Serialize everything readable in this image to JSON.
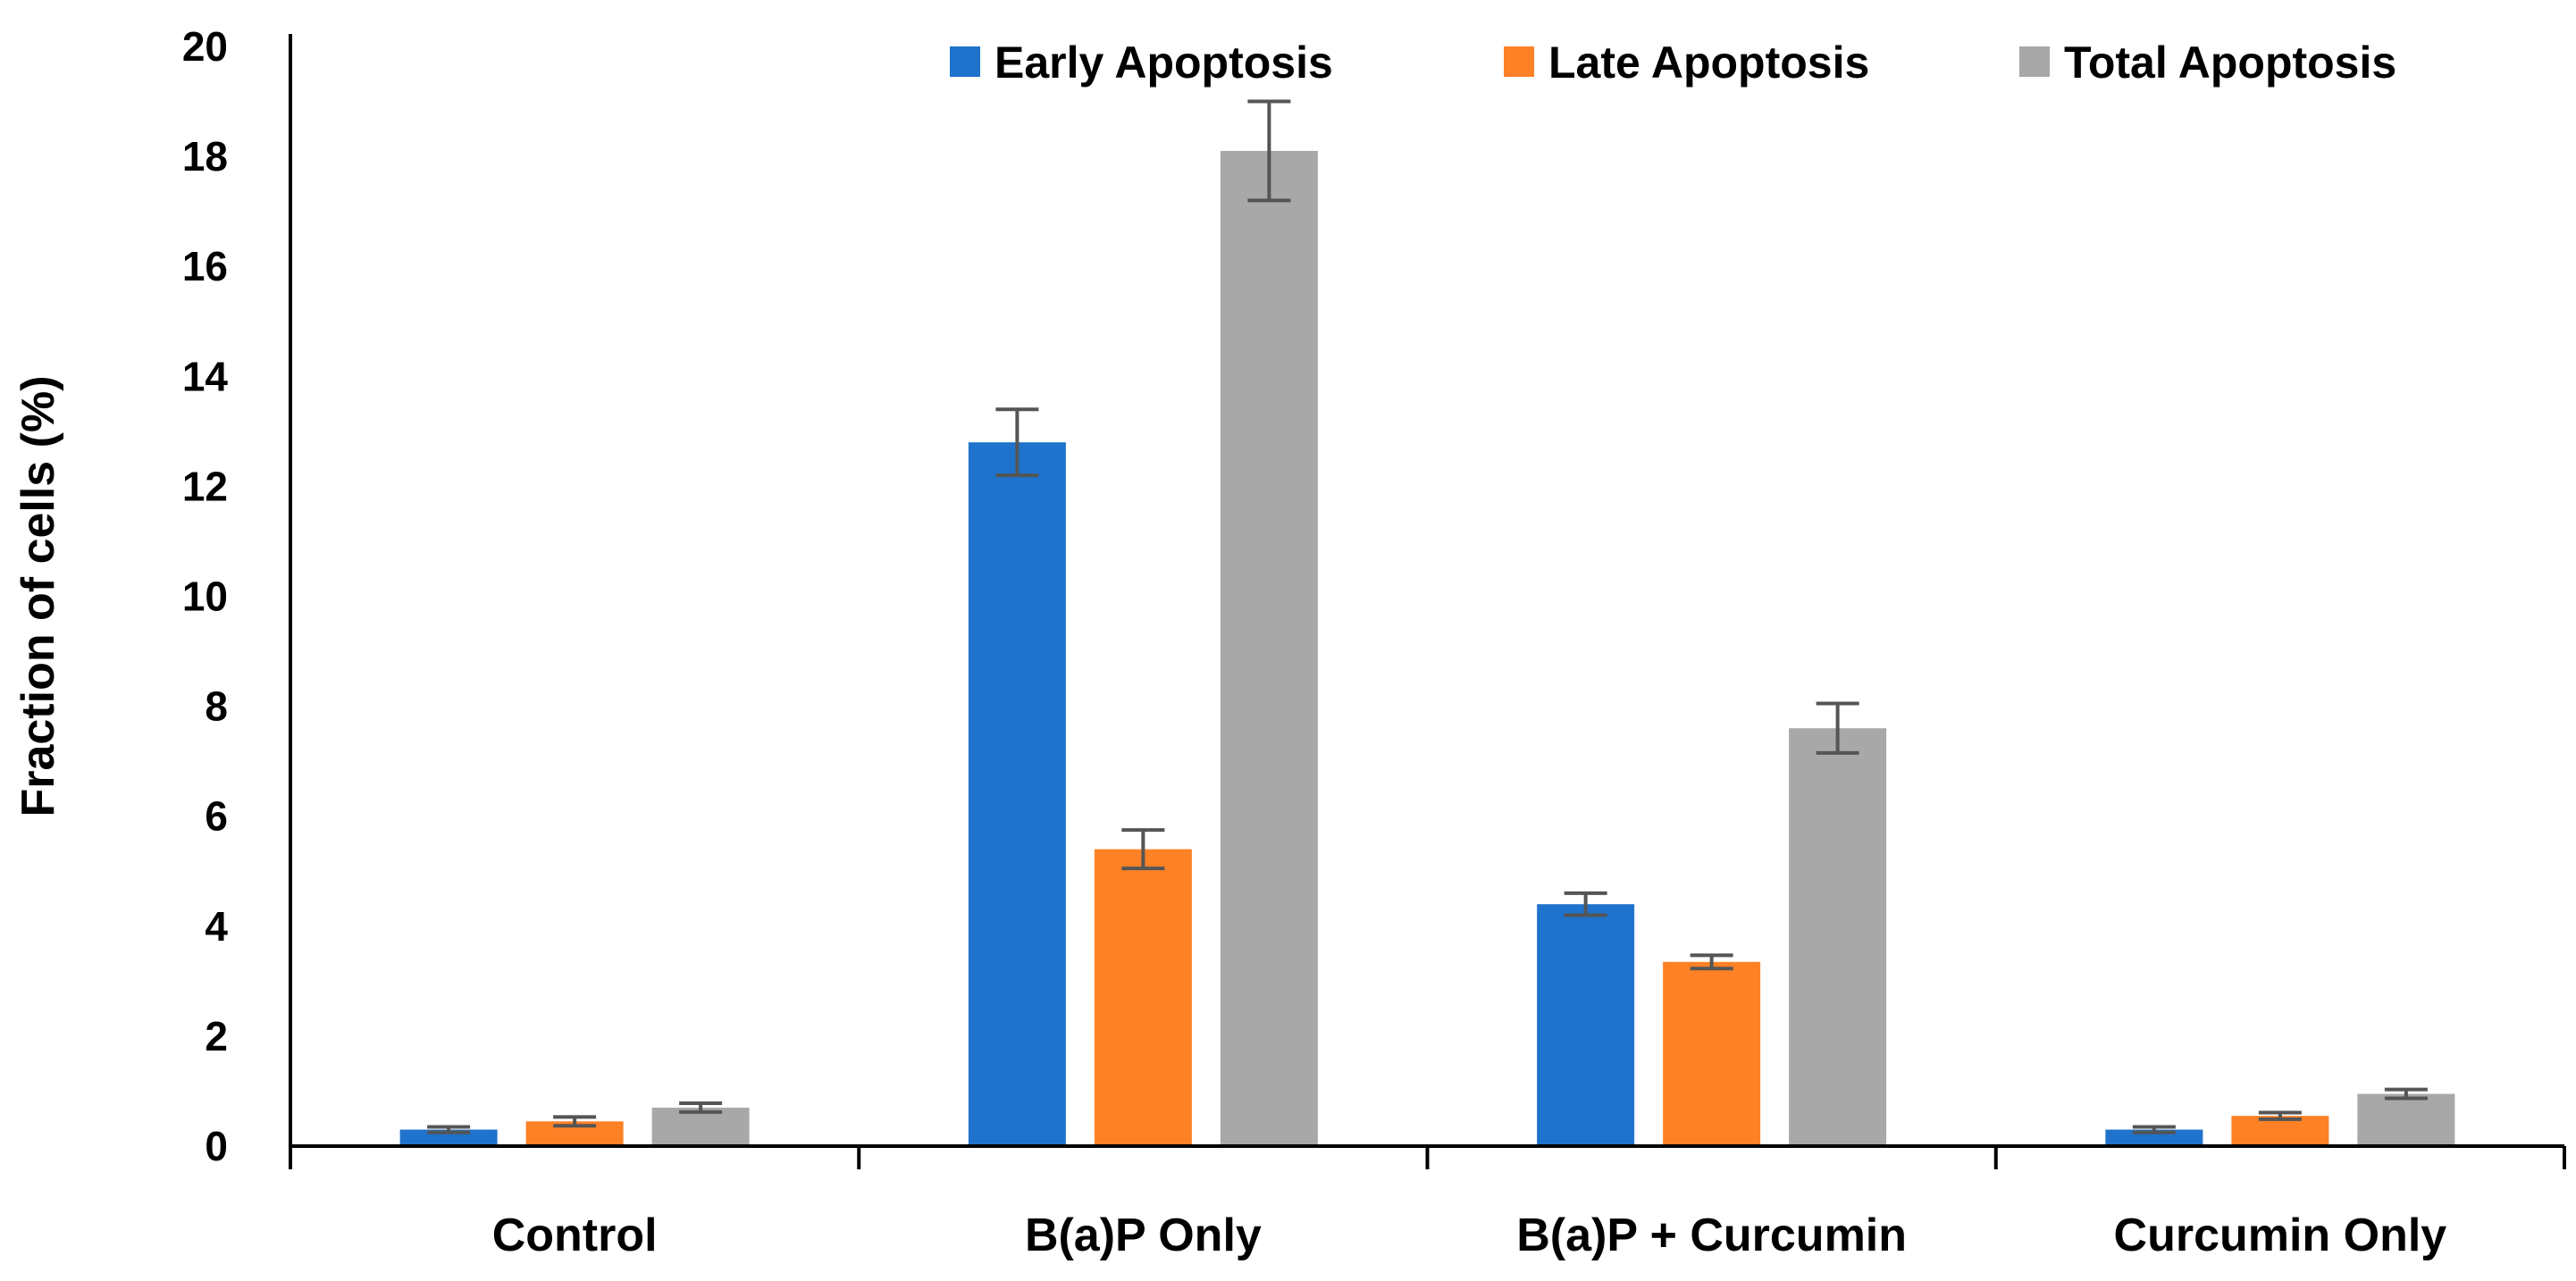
{
  "chart_data": {
    "type": "bar",
    "title": "",
    "xlabel": "",
    "ylabel": "Fraction of cells (%)",
    "ylim": [
      0,
      20
    ],
    "yticks": [
      0,
      2,
      4,
      6,
      8,
      10,
      12,
      14,
      16,
      18,
      20
    ],
    "grid": false,
    "legend_position": "top-right",
    "categories": [
      "Control",
      "B(a)P Only",
      "B(a)P + Curcumin",
      "Curcumin Only"
    ],
    "series": [
      {
        "name": "Early Apoptosis",
        "color": "#1F73CC",
        "values": [
          0.3,
          12.8,
          4.4,
          0.3
        ],
        "errors": [
          0.05,
          0.6,
          0.2,
          0.05
        ]
      },
      {
        "name": "Late Apoptosis",
        "color": "#FF8126",
        "values": [
          0.45,
          5.4,
          3.35,
          0.55
        ],
        "errors": [
          0.08,
          0.35,
          0.12,
          0.06
        ]
      },
      {
        "name": "Total Apoptosis",
        "color": "#A8A8A8",
        "values": [
          0.7,
          18.1,
          7.6,
          0.95
        ],
        "errors": [
          0.08,
          0.9,
          0.45,
          0.08
        ]
      }
    ],
    "error_bar_color": "#555555",
    "axis_color": "#000000"
  }
}
